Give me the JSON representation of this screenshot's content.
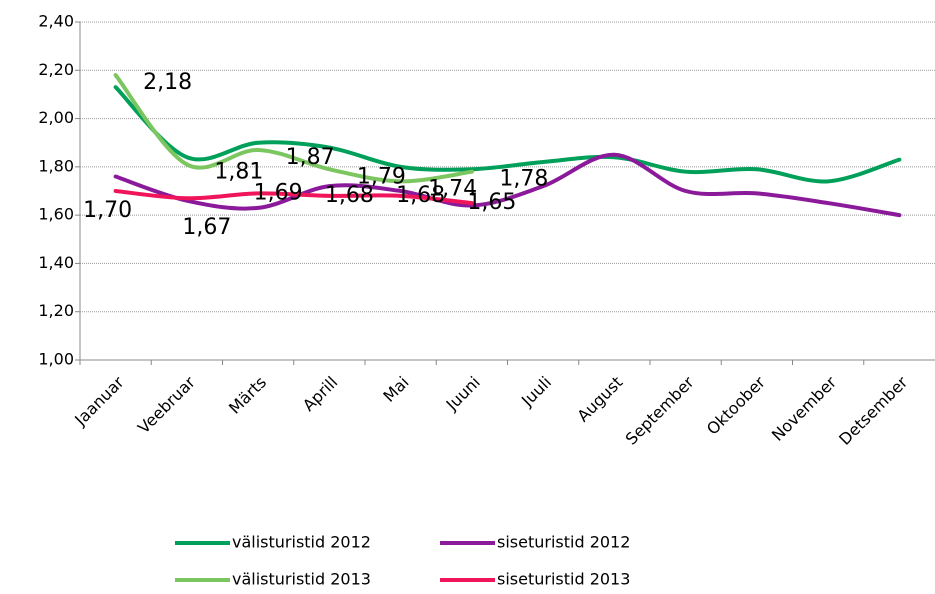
{
  "chart_data": {
    "type": "line",
    "categories": [
      "Jaanuar",
      "Veebruar",
      "Märts",
      "Aprill",
      "Mai",
      "Juuni",
      "Juuli",
      "August",
      "September",
      "Oktoober",
      "November",
      "Detsember"
    ],
    "series": [
      {
        "name": "välisturistid 2012",
        "color": "#00a05a",
        "values": [
          2.13,
          1.84,
          1.9,
          1.88,
          1.8,
          1.79,
          1.82,
          1.84,
          1.78,
          1.79,
          1.74,
          1.83
        ]
      },
      {
        "name": "siseturistid 2012",
        "color": "#8b1a9b",
        "values": [
          1.76,
          1.66,
          1.63,
          1.72,
          1.7,
          1.64,
          1.72,
          1.85,
          1.7,
          1.69,
          1.65,
          1.6
        ]
      },
      {
        "name": "välisturistid 2013",
        "color": "#7cc660",
        "values": [
          2.18,
          1.81,
          1.87,
          1.79,
          1.74,
          1.78,
          null,
          null,
          null,
          null,
          null,
          null
        ],
        "value_labels": [
          "2,18",
          "1,81",
          "1,87",
          "1,79",
          "1,74",
          "1,78",
          null,
          null,
          null,
          null,
          null,
          null
        ]
      },
      {
        "name": "siseturistid 2013",
        "color": "#f0145a",
        "values": [
          1.7,
          1.67,
          1.69,
          1.68,
          1.68,
          1.65,
          null,
          null,
          null,
          null,
          null,
          null
        ],
        "value_labels": [
          "1,70",
          "1,67",
          "1,69",
          "1,68",
          "1,68",
          "1,65",
          null,
          null,
          null,
          null,
          null,
          null
        ]
      }
    ],
    "ylim": [
      1.0,
      2.4
    ],
    "yticks": [
      {
        "value": 1.0,
        "label": "1,00"
      },
      {
        "value": 1.2,
        "label": "1,20"
      },
      {
        "value": 1.4,
        "label": "1,40"
      },
      {
        "value": 1.6,
        "label": "1,60"
      },
      {
        "value": 1.8,
        "label": "1,80"
      },
      {
        "value": 2.0,
        "label": "2,00"
      },
      {
        "value": 2.2,
        "label": "2,20"
      },
      {
        "value": 2.4,
        "label": "2,40"
      }
    ],
    "grid": true,
    "legend": "bottom"
  }
}
